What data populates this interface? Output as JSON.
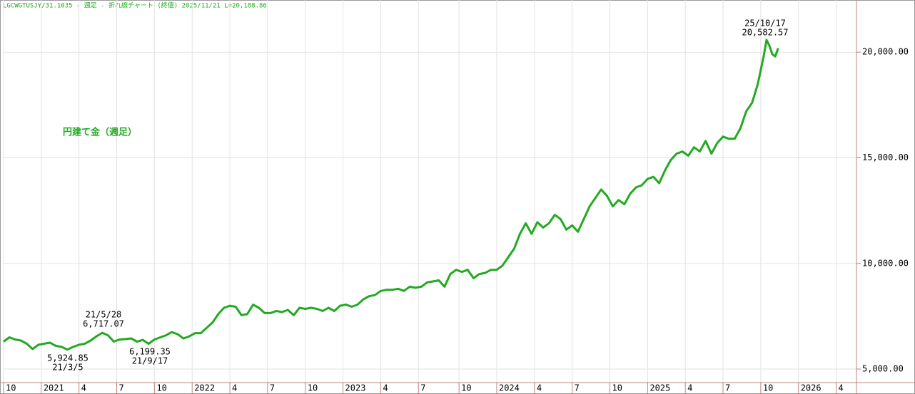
{
  "chart_data": {
    "type": "line",
    "title": "LGCWGTUSJY/31.1035 - 週足 - 折れ線チャート (終値)  2025/11/21 L=20,188.86",
    "series": [
      {
        "name": "円建て金（週足）",
        "color": "#22aa22",
        "x": [
          0,
          2,
          4,
          6,
          8,
          10,
          12,
          14,
          16,
          18,
          20,
          22,
          24,
          26,
          28,
          30,
          32,
          34,
          36,
          38,
          40,
          42,
          44,
          46,
          48,
          50,
          52,
          54,
          56,
          58,
          60,
          62,
          64,
          66,
          68,
          70,
          72,
          74,
          76,
          78,
          80,
          82,
          84,
          86,
          88,
          90,
          92,
          94,
          96,
          98,
          100,
          102,
          104,
          106,
          108,
          110,
          112,
          114,
          116,
          118,
          120,
          122,
          124,
          126,
          128,
          130,
          132,
          134,
          136,
          138,
          140,
          142,
          144,
          146,
          148,
          150,
          152,
          154,
          156,
          158,
          160,
          162,
          164,
          166,
          168,
          170,
          172,
          174,
          176,
          178,
          180,
          182,
          184,
          186,
          188,
          190,
          192,
          194,
          196,
          198,
          200,
          202,
          204,
          206,
          208,
          210,
          212,
          214,
          216,
          218,
          220,
          222,
          224,
          226,
          228,
          230,
          232,
          234,
          236,
          238,
          240,
          242,
          244,
          246,
          248,
          250,
          252,
          254,
          256,
          258,
          260,
          262,
          263,
          264,
          265,
          266,
          267
        ],
        "values": [
          6300,
          6500,
          6400,
          6350,
          6200,
          5950,
          6150,
          6200,
          6250,
          6100,
          6050,
          5924.85,
          6050,
          6150,
          6200,
          6350,
          6550,
          6717.07,
          6600,
          6300,
          6400,
          6420,
          6450,
          6300,
          6380,
          6199.35,
          6400,
          6500,
          6600,
          6750,
          6650,
          6450,
          6550,
          6700,
          6700,
          6950,
          7200,
          7600,
          7900,
          8000,
          7950,
          7550,
          7600,
          8050,
          7900,
          7650,
          7650,
          7750,
          7700,
          7800,
          7550,
          7900,
          7850,
          7900,
          7850,
          7750,
          7900,
          7750,
          8000,
          8050,
          7950,
          8050,
          8300,
          8450,
          8500,
          8700,
          8750,
          8750,
          8800,
          8700,
          8900,
          8850,
          8900,
          9100,
          9150,
          9200,
          8900,
          9500,
          9700,
          9600,
          9700,
          9300,
          9500,
          9550,
          9700,
          9700,
          9900,
          10300,
          10700,
          11400,
          11900,
          11400,
          11950,
          11700,
          11900,
          12300,
          12100,
          11600,
          11800,
          11500,
          12100,
          12700,
          13100,
          13500,
          13200,
          12700,
          13000,
          12800,
          13300,
          13600,
          13700,
          14000,
          14100,
          13800,
          14400,
          14900,
          15200,
          15300,
          15100,
          15500,
          15300,
          15800,
          15200,
          15700,
          16000,
          15900,
          15900,
          16400,
          17200,
          17600,
          18500,
          19800,
          20582.57,
          20300,
          19900,
          19800,
          20188.86
        ]
      }
    ],
    "xlim": [
      0,
      294
    ],
    "xticks": [
      {
        "value": 0,
        "label": "10"
      },
      {
        "value": 13,
        "label": "2021"
      },
      {
        "value": 26,
        "label": "4"
      },
      {
        "value": 39,
        "label": "7"
      },
      {
        "value": 52,
        "label": "10"
      },
      {
        "value": 65,
        "label": "2022"
      },
      {
        "value": 78,
        "label": "4"
      },
      {
        "value": 91,
        "label": "7"
      },
      {
        "value": 104,
        "label": "10"
      },
      {
        "value": 117,
        "label": "2023"
      },
      {
        "value": 130,
        "label": "4"
      },
      {
        "value": 143,
        "label": "7"
      },
      {
        "value": 157,
        "label": "10"
      },
      {
        "value": 170,
        "label": "2024"
      },
      {
        "value": 183,
        "label": "4"
      },
      {
        "value": 196,
        "label": "7"
      },
      {
        "value": 209,
        "label": "10"
      },
      {
        "value": 222,
        "label": "2025"
      },
      {
        "value": 235,
        "label": "4"
      },
      {
        "value": 248,
        "label": "7"
      },
      {
        "value": 261,
        "label": "10"
      },
      {
        "value": 274,
        "label": "2026"
      },
      {
        "value": 287,
        "label": "4"
      }
    ],
    "ylim": [
      4360,
      22470
    ],
    "yticks": [
      {
        "value": 5000,
        "label": "5,000.00"
      },
      {
        "value": 10000,
        "label": "10,000.00"
      },
      {
        "value": 15000,
        "label": "15,000.00"
      },
      {
        "value": 20000,
        "label": "20,000.00"
      }
    ],
    "grid": true,
    "annotations": [
      [
        "21/5/28",
        "6,717.07"
      ],
      [
        "5,924.85",
        "21/3/5"
      ],
      [
        "6,199.35",
        "21/9/17"
      ],
      [
        "25/10/17",
        "20,582.57"
      ]
    ]
  }
}
